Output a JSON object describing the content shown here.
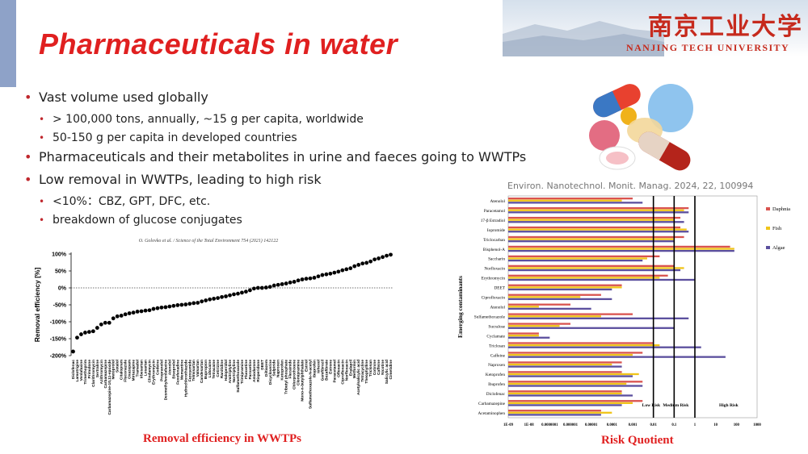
{
  "slide": {
    "title": "Pharmaceuticals in water",
    "logo_cn": "南京工业大学",
    "logo_en": "NANJING TECH UNIVERSITY",
    "bullets": [
      {
        "text": "Vast volume used globally",
        "sub": [
          "> 100,000 tons, annually, ~15 g per capita, worldwide",
          "50-150 g per capita in developed countries"
        ]
      },
      {
        "text": "Pharmaceuticals and their metabolites in urine and faeces going to WWTPs",
        "sub": []
      },
      {
        "text": "Low removal in WWTPs, leading to high risk",
        "sub": [
          "<10%：CBZ, GPT, DFC, etc.",
          "breakdown of glucose conjugates"
        ]
      }
    ],
    "citation2": "Environ. Nanotechnol. Monit. Manag. 2024, 22, 100994",
    "caption1": "Removal efficiency in WWTPs",
    "caption2": "Risk Quotient",
    "pill_colors": [
      "#e8412f",
      "#6db0e6",
      "#f0b21a",
      "#f08a9b",
      "#ffffff",
      "#b4241b"
    ]
  },
  "chart_data": [
    {
      "type": "scatter",
      "title": "",
      "source_note": "O. Golovko et al. / Science of the Total Environment 754 (2021) 142122",
      "xlabel": "",
      "ylabel": "Removal efficiency [%]",
      "ylim": [
        -200,
        100
      ],
      "yticks": [
        "100%",
        "50%",
        "0%",
        "-50%",
        "-100%",
        "-150%",
        "-200%"
      ],
      "categories": [
        "Diclofenac",
        "Lamotrigine",
        "Venlafaxine",
        "Trimethoprim",
        "Primidone",
        "Clarithromycin",
        "Sertraline",
        "Azithromycin",
        "Carbamazepine",
        "Carbamazepine-10,11-epoxide",
        "Metoprolol",
        "Sotalol",
        "Citalopram",
        "Fluconazole",
        "Oxazepam",
        "Mirtazapine",
        "Tramadol",
        "Irbesartan",
        "Losartan",
        "Clindamycin",
        "Erythromycin",
        "Codeine",
        "Propranolol",
        "Desmethylvenlafaxine",
        "Atenolol",
        "Bisoprolol",
        "Fexofenadine",
        "Memantine",
        "Hydrochlorothiazide",
        "Furosemide",
        "Telmisartan",
        "Valsartan",
        "Candesartan",
        "Bupropion",
        "Lidocaine",
        "Tetracaine",
        "Cetirizine",
        "Ranitidine",
        "Haloperidol",
        "Amitriptyline",
        "Nortriptyline",
        "Sulfamethoxazole",
        "Trimipramine",
        "Fluoxetine",
        "Paroxetine",
        "Amiodarone",
        "Risperidone",
        "DEET",
        "Diltiazem",
        "Dicycloverine",
        "Sulpiride",
        "Naproxen",
        "Ketoprofen",
        "Tributyl phosphate",
        "Flecainide",
        "Chlorprothixene",
        "Clomipramine",
        "Mono-n-butylphthalate",
        "Estriol",
        "Sulfamethoxazole-N-acetyl",
        "Ibuprofen",
        "Iohexol",
        "Gemfibrozil",
        "Bezafibrate",
        "Estrone",
        "Paracetamol",
        "Ofloxacin",
        "Ciprofloxacin",
        "Norfloxacin",
        "Enalapril",
        "Metformin",
        "Acetylsalicylic acid",
        "Tetracycline",
        "Theophylline",
        "Triclosan",
        "Cotinine",
        "Caffeine",
        "Nicotine",
        "Salicylic acid",
        "Cimetidine"
      ],
      "values": [
        -188,
        -147,
        -137,
        -132,
        -130,
        -128,
        -118,
        -108,
        -103,
        -103,
        -90,
        -84,
        -82,
        -78,
        -75,
        -73,
        -70,
        -69,
        -67,
        -66,
        -62,
        -60,
        -58,
        -57,
        -55,
        -53,
        -51,
        -50,
        -49,
        -47,
        -45,
        -44,
        -40,
        -37,
        -34,
        -32,
        -30,
        -27,
        -25,
        -22,
        -19,
        -17,
        -14,
        -11,
        -7,
        -2,
        0,
        0,
        1,
        3,
        7,
        9,
        11,
        13,
        16,
        18,
        22,
        25,
        27,
        28,
        30,
        34,
        38,
        40,
        42,
        45,
        48,
        52,
        55,
        58,
        64,
        68,
        72,
        74,
        78,
        84,
        87,
        91,
        95,
        98
      ]
    },
    {
      "type": "bar",
      "orientation": "horizontal",
      "xscale": "log",
      "ylabel": "Emerging contaminants",
      "xticks": [
        "1E-09",
        "1E-08",
        "0.0000001",
        "0.000001",
        "0.00001",
        "0.0001",
        "0.001",
        "0.01",
        "0.1",
        "1",
        "10",
        "100",
        "1000"
      ],
      "thresholds": [
        {
          "value": 0.01,
          "label": "Low Risk"
        },
        {
          "value": 0.1,
          "label": "Medium Risk"
        },
        {
          "value": 1,
          "label": "High Risk"
        }
      ],
      "legend": "right",
      "categories": [
        "Atenolol",
        "Paracetamol",
        "17-β Estradiol",
        "Iopromide",
        "Triclocarban",
        "Bisphenol-A",
        "Saccharin",
        "Norfloxacin",
        "Erythromycin",
        "DEET",
        "Ciprofloxacin",
        "Atenolol",
        "Sulfamethoxazole",
        "Sucralose",
        "Cyclamate",
        "Triclosan",
        "Caffeine",
        "Naproxen",
        "Ketoprofen",
        "Ibuprofen",
        "Diclofenac",
        "Carbamazepine",
        "Acetaminophen"
      ],
      "series": [
        {
          "name": "Daphnia",
          "color": "#d9534f",
          "values": [
            0.001,
            0.5,
            0.2,
            0.2,
            0.3,
            50,
            0.02,
            0.1,
            0.05,
            0.0003,
            3e-05,
            1e-06,
            0.001,
            1e-06,
            3e-08,
            0.01,
            0.003,
            0.0003,
            0.0003,
            0.003,
            0.0003,
            0.003,
            3e-05
          ]
        },
        {
          "name": "Fish",
          "color": "#f0c419",
          "values": [
            0.0003,
            0.3,
            0.1,
            0.4,
            0.1,
            80,
            0.005,
            0.3,
            0.02,
            0.0003,
            3e-06,
            3e-08,
            3e-05,
            3e-07,
            3e-08,
            0.02,
            0.001,
            0.0001,
            0.002,
            0.0005,
            0.0003,
            0.001,
            0.0001
          ]
        },
        {
          "name": "Algae",
          "color": "#5b4f9e",
          "values": [
            0.003,
            0.5,
            0.3,
            0.5,
            0.1,
            80,
            0.003,
            0.2,
            1,
            0.0001,
            0.0001,
            1e-05,
            0.5,
            0.1,
            1e-07,
            2,
            30,
            0.0003,
            0.001,
            0.003,
            0.001,
            0.0003,
            3e-05
          ]
        }
      ]
    }
  ]
}
